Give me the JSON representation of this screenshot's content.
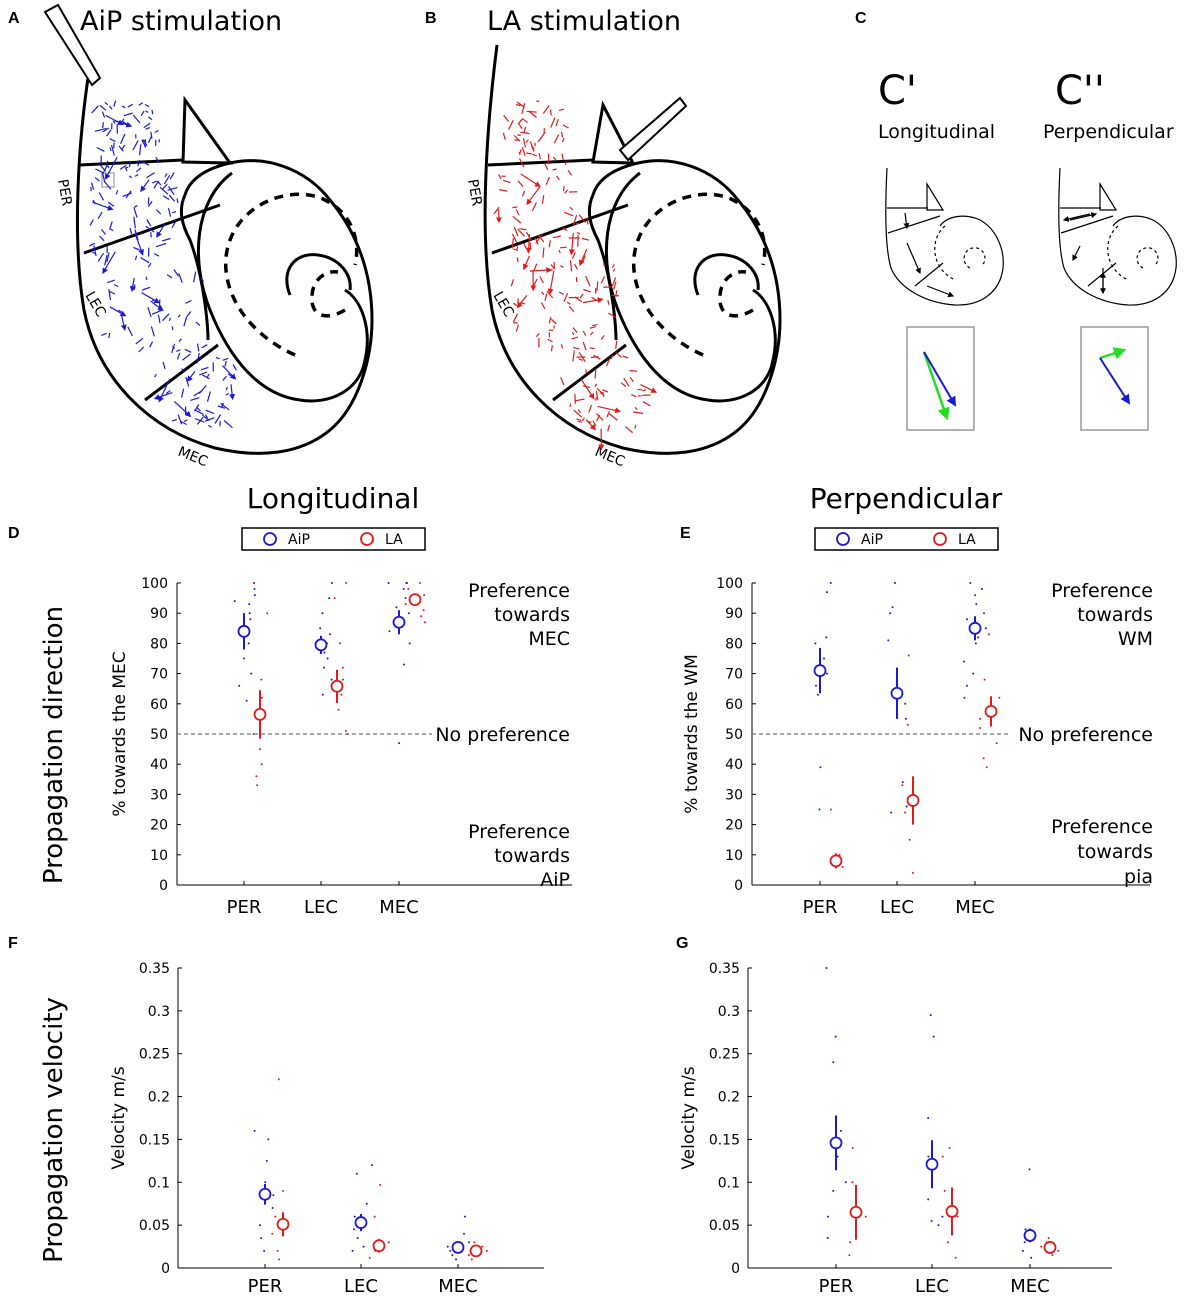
{
  "colors": {
    "aip": "#1a1ad6",
    "la": "#e11a1a",
    "green": "#22dd22"
  },
  "panels": {
    "A": {
      "letter": "A",
      "title": "AiP stimulation"
    },
    "B": {
      "letter": "B",
      "title": "LA stimulation"
    },
    "C": {
      "letter": "C",
      "c1": "C'",
      "c2": "C''",
      "c1_sub": "Longitudinal",
      "c2_sub": "Perpendicular"
    },
    "D": {
      "letter": "D"
    },
    "E": {
      "letter": "E"
    },
    "F": {
      "letter": "F"
    },
    "G": {
      "letter": "G"
    }
  },
  "region_labels": {
    "per": "PER",
    "lec": "LEC",
    "mec": "MEC"
  },
  "headings": {
    "longitudinal": "Longitudinal",
    "perpendicular": "Perpendicular"
  },
  "row_labels": {
    "direction": "Propagation direction",
    "velocity": "Propagation velocity"
  },
  "legend": {
    "aip": "AiP",
    "la": "LA"
  },
  "annotations": {
    "d_top": [
      "Preference",
      "towards",
      "MEC"
    ],
    "d_mid": "No preference",
    "d_bot": [
      "Preference",
      "towards",
      "AiP"
    ],
    "e_top": [
      "Preference",
      "towards",
      "WM"
    ],
    "e_mid": "No preference",
    "e_bot": [
      "Preference",
      "towards",
      "pia"
    ]
  },
  "chart_data": [
    {
      "panel": "D",
      "type": "scatter",
      "title": "Longitudinal",
      "ylabel": "% towards the MEC",
      "xlabel": "",
      "categories": [
        "PER",
        "LEC",
        "MEC"
      ],
      "ylim": [
        0,
        100
      ],
      "yticks": [
        "0",
        "10",
        "20",
        "30",
        "40",
        "50",
        "60",
        "70",
        "80",
        "90",
        "100"
      ],
      "reference_line": 50,
      "series": [
        {
          "name": "AiP",
          "means": [
            84,
            79.5,
            87
          ],
          "sem": [
            6,
            3,
            4
          ],
          "points": [
            [
              100,
              98,
              96,
              94,
              93,
              90,
              88,
              85,
              80,
              75,
              70,
              66,
              61
            ],
            [
              100,
              95,
              90,
              85,
              83,
              80,
              77,
              75,
              72,
              68,
              66,
              63
            ],
            [
              100,
              100,
              100,
              98,
              95,
              92,
              90,
              87,
              84,
              80,
              73,
              47
            ]
          ]
        },
        {
          "name": "LA",
          "means": [
            56.5,
            65.8,
            94.5
          ],
          "sem": [
            8,
            5.5,
            2
          ],
          "points": [
            [
              100,
              90,
              68,
              62,
              56,
              50,
              45,
              40,
              36,
              33
            ],
            [
              100,
              95,
              80,
              72,
              68,
              63,
              58,
              51,
              50
            ],
            [
              100,
              98,
              96,
              95,
              93,
              91,
              89,
              87
            ]
          ]
        }
      ]
    },
    {
      "panel": "E",
      "type": "scatter",
      "title": "Perpendicular",
      "ylabel": "% towards the WM",
      "xlabel": "",
      "categories": [
        "PER",
        "LEC",
        "MEC"
      ],
      "ylim": [
        0,
        100
      ],
      "yticks": [
        "0",
        "10",
        "20",
        "30",
        "40",
        "50",
        "60",
        "70",
        "80",
        "90",
        "100"
      ],
      "reference_line": 50,
      "series": [
        {
          "name": "AiP",
          "means": [
            71,
            63.5,
            85
          ],
          "sem": [
            7.5,
            8.5,
            4
          ],
          "points": [
            [
              100,
              97,
              82,
              80,
              75,
              70,
              66,
              63,
              39,
              25
            ],
            [
              100,
              92,
              90,
              81,
              64,
              60,
              55,
              34,
              26,
              24
            ],
            [
              100,
              98,
              96,
              93,
              90,
              88,
              85,
              82,
              80,
              74,
              70,
              66,
              62
            ]
          ]
        },
        {
          "name": "LA",
          "means": [
            8,
            28,
            57.5
          ],
          "sem": [
            2.5,
            8,
            5
          ],
          "points": [
            [
              25,
              10,
              8,
              6
            ],
            [
              76,
              53,
              33,
              28,
              24,
              15,
              4
            ],
            [
              83,
              68,
              62,
              57,
              55,
              52,
              47,
              42,
              39
            ]
          ]
        }
      ]
    },
    {
      "panel": "F",
      "type": "scatter",
      "title": "",
      "ylabel": "Velocity m/s",
      "xlabel": "",
      "categories": [
        "PER",
        "LEC",
        "MEC"
      ],
      "ylim": [
        0,
        0.35
      ],
      "yticks": [
        "0",
        "0.05",
        "0.1",
        "0.15",
        "0.2",
        "0.25",
        "0.3",
        "0.35"
      ],
      "series": [
        {
          "name": "AiP",
          "means": [
            0.086,
            0.053,
            0.024
          ],
          "sem": [
            0.012,
            0.01,
            0.004
          ],
          "points": [
            [
              0.16,
              0.15,
              0.125,
              0.1,
              0.09,
              0.085,
              0.07,
              0.05,
              0.035,
              0.02
            ],
            [
              0.12,
              0.11,
              0.075,
              0.06,
              0.05,
              0.045,
              0.035,
              0.025,
              0.02
            ],
            [
              0.06,
              0.04,
              0.03,
              0.025,
              0.02,
              0.015,
              0.01
            ]
          ]
        },
        {
          "name": "LA",
          "means": [
            0.051,
            0.026,
            0.02
          ],
          "sem": [
            0.014,
            0.008,
            0.006
          ],
          "points": [
            [
              0.22,
              0.09,
              0.06,
              0.04,
              0.02,
              0.01
            ],
            [
              0.097,
              0.06,
              0.03,
              0.02,
              0.012
            ],
            [
              0.03,
              0.025,
              0.02,
              0.015,
              0.01
            ]
          ]
        }
      ]
    },
    {
      "panel": "G",
      "type": "scatter",
      "title": "",
      "ylabel": "Velocity m/s",
      "xlabel": "",
      "categories": [
        "PER",
        "LEC",
        "MEC"
      ],
      "ylim": [
        0,
        0.35
      ],
      "yticks": [
        "0",
        "0.05",
        "0.1",
        "0.15",
        "0.2",
        "0.25",
        "0.3",
        "0.35"
      ],
      "series": [
        {
          "name": "AiP",
          "means": [
            0.146,
            0.121,
            0.038
          ],
          "sem": [
            0.032,
            0.028,
            0.008
          ],
          "points": [
            [
              0.35,
              0.27,
              0.24,
              0.16,
              0.13,
              0.1,
              0.09,
              0.06,
              0.035
            ],
            [
              0.295,
              0.27,
              0.175,
              0.13,
              0.08,
              0.06,
              0.055,
              0.05
            ],
            [
              0.115,
              0.045,
              0.04,
              0.03,
              0.02,
              0.012
            ]
          ]
        },
        {
          "name": "LA",
          "means": [
            0.065,
            0.066,
            0.024
          ],
          "sem": [
            0.032,
            0.028,
            0.006
          ],
          "points": [
            [
              0.14,
              0.1,
              0.06,
              0.03,
              0.015
            ],
            [
              0.14,
              0.13,
              0.09,
              0.06,
              0.03,
              0.012
            ],
            [
              0.035,
              0.03,
              0.025,
              0.02,
              0.015
            ]
          ]
        }
      ]
    }
  ]
}
